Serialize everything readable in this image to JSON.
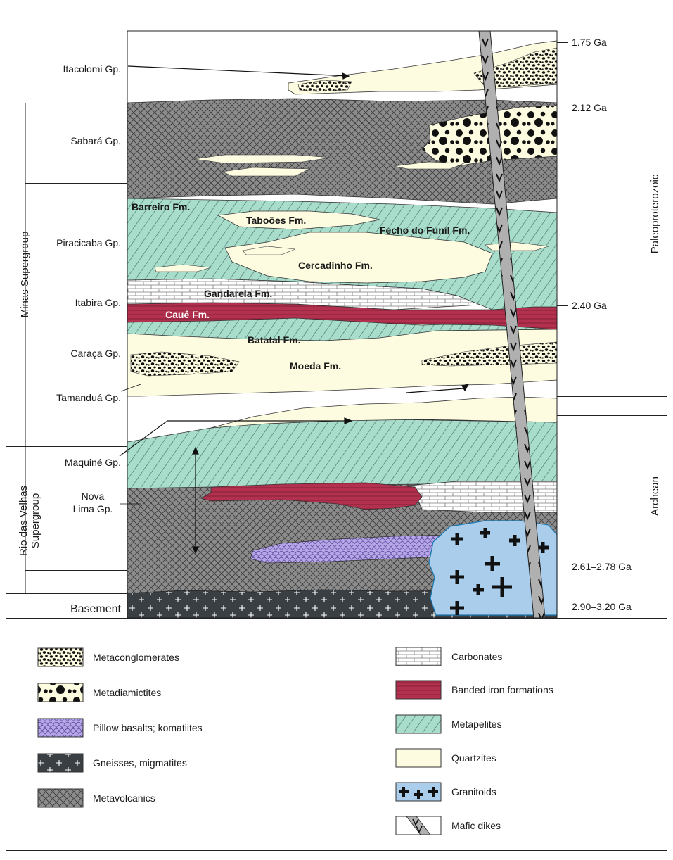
{
  "groups": {
    "itacolomi": "Itacolomi Gp.",
    "sabara": "Sabará Gp.",
    "piracicaba": "Piracicaba Gp.",
    "itabira": "Itabira Gp.",
    "caraca": "Caraça Gp.",
    "tamandua": "Tamanduá Gp.",
    "maquine": "Maquiné Gp.",
    "nova_lima_1": "Nova",
    "nova_lima_2": "Lima Gp.",
    "basement": "Basement"
  },
  "supergroups": {
    "minas": "Minas Supergroup",
    "rio_1": "Rio das Velhas",
    "rio_2": "Supergroup"
  },
  "formations": {
    "barreiro": "Barreiro Fm.",
    "taboes": "Taboões Fm.",
    "fecho": "Fecho do Funil Fm.",
    "cercadinho": "Cercadinho Fm.",
    "gandarela": "Gandarela Fm.",
    "caue": "Cauê Fm.",
    "batatal": "Batatal Fm.",
    "moeda": "Moeda Fm."
  },
  "ages": {
    "a175": "1.75 Ga",
    "a212": "2.12 Ga",
    "a240": "2.40 Ga",
    "a261": "2.61–2.78 Ga",
    "a290": "2.90–3.20 Ga"
  },
  "eras": {
    "paleo": "Paleoproterozoic",
    "archean": "Archean"
  },
  "legend": {
    "metaconglomerates": "Metaconglomerates",
    "metadiamictites": "Metadiamictites",
    "pillow": "Pillow basalts; komatiites",
    "gneisses": "Gneisses, migmatites",
    "metavolcanics": "Metavolcanics",
    "carbonates": "Carbonates",
    "bif": "Banded iron formations",
    "metapelites": "Metapelites",
    "quartzites": "Quartzites",
    "granitoids": "Granitoids",
    "mafic": "Mafic dikes"
  },
  "colors": {
    "quartzite": "#fdfbe0",
    "metapelite": "#a8dccb",
    "metavolcanic": "#8a8a8a",
    "bif": "#b3314f",
    "pillow": "#b6a6e8",
    "granitoid": "#a9cdea",
    "gneiss": "#3a3f44",
    "dike": "#b0b0b0"
  }
}
